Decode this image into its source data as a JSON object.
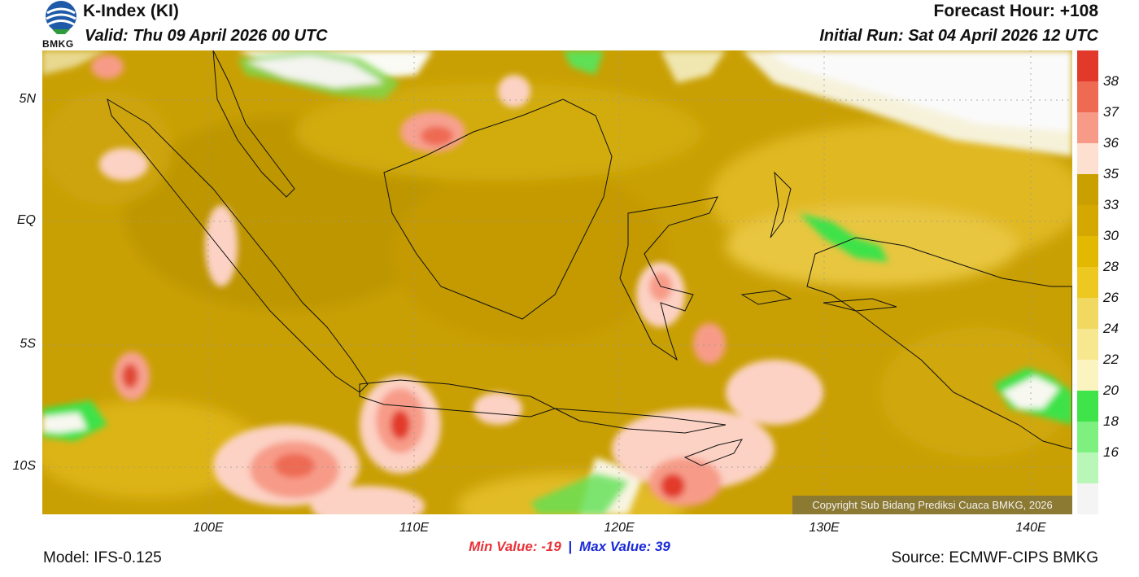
{
  "header": {
    "title": "K-Index (KI)",
    "valid": "Valid: Thu 09 April 2026 00 UTC",
    "forecast_hour": "Forecast Hour: +108",
    "initial_run": "Initial Run: Sat 04 April 2026 12 UTC"
  },
  "logo": {
    "icon": "bmkg-logo-icon",
    "text": "BMKG"
  },
  "axes": {
    "lat_labels": [
      "5N",
      "EQ",
      "5S",
      "10S"
    ],
    "lon_labels": [
      "100E",
      "110E",
      "120E",
      "130E",
      "140E"
    ]
  },
  "colorbar": {
    "labels": [
      "38",
      "37",
      "36",
      "35",
      "33",
      "30",
      "28",
      "26",
      "24",
      "22",
      "20",
      "18",
      "16"
    ],
    "colors": [
      "#e23a2a",
      "#ee6a52",
      "#f79b88",
      "#fde0d0",
      "#caa000",
      "#d4a800",
      "#e2b800",
      "#ecc820",
      "#f1d860",
      "#f7e890",
      "#fcf4c0",
      "#3fe34a",
      "#7ef080",
      "#b8f7b8",
      "#f4f4f4"
    ]
  },
  "stats": {
    "min": "Min Value: -19",
    "separator": "|",
    "max": "Max Value:  39"
  },
  "footer": {
    "model": "Model: IFS-0.125",
    "source": "Source: ECMWF-CIPS BMKG",
    "copyright": "Copyright Sub Bidang Prediksi Cuaca BMKG, 2026"
  }
}
